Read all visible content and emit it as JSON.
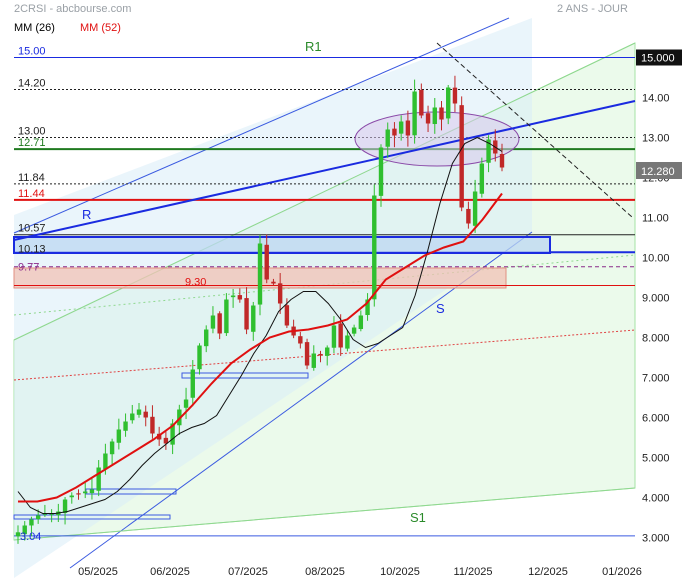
{
  "header": {
    "title": "2CRSI - abcbourse.com",
    "period": "2 ANS - JOUR"
  },
  "legend": [
    {
      "label": "MM (26)",
      "color": "#000000"
    },
    {
      "label": "MM (52)",
      "color": "#e01010"
    }
  ],
  "chart_data": {
    "type": "line",
    "title": "2CRSI",
    "x_ticks": [
      "05/2025",
      "06/2025",
      "07/2025",
      "08/2025",
      "10/2025",
      "11/2025",
      "12/2025",
      "01/2026"
    ],
    "y_ticks": [
      "15.000",
      "14.00",
      "13.00",
      "12.00",
      "11.00",
      "10.00",
      "9.000",
      "8.000",
      "7.000",
      "6.000",
      "5.000",
      "4.000",
      "3.000"
    ],
    "ylim": [
      3.0,
      15.0
    ],
    "last_price": {
      "value": 12.28,
      "label": "12.280"
    },
    "price_series": {
      "name": "2CRSI",
      "start_date": "2025-03-28",
      "end_date": "2025-11-28",
      "close": [
        3.13,
        3.3,
        3.45,
        3.55,
        3.6,
        3.6,
        3.65,
        3.95,
        4.05,
        4.1,
        4.15,
        4.2,
        4.75,
        5.1,
        5.4,
        5.7,
        5.9,
        6.1,
        6.2,
        6.0,
        5.6,
        5.45,
        5.35,
        5.85,
        6.2,
        6.45,
        7.2,
        7.8,
        8.2,
        8.55,
        8.1,
        8.95,
        9.05,
        8.95,
        8.2,
        8.8,
        10.35,
        9.45,
        9.35,
        8.85,
        8.3,
        8.05,
        7.85,
        7.3,
        7.6,
        7.55,
        7.75,
        8.3,
        7.75,
        8.05,
        8.25,
        8.55,
        8.95,
        11.55,
        12.75,
        13.2,
        13.05,
        13.4,
        13.05,
        14.15,
        13.55,
        13.35,
        13.75,
        13.45,
        14.25,
        13.85,
        11.25,
        10.85,
        11.65,
        12.35,
        12.95,
        12.6,
        12.25
      ]
    },
    "series": [
      {
        "name": "MM (26)",
        "color": "#000000",
        "values": [
          4.15,
          3.75,
          3.6,
          3.6,
          3.65,
          3.75,
          3.85,
          3.95,
          4.15,
          4.45,
          4.8,
          5.1,
          5.35,
          5.6,
          5.75,
          5.85,
          6.05,
          6.55,
          7.05,
          7.6,
          8.05,
          8.65,
          8.95,
          9.15,
          9.15,
          8.85,
          8.45,
          7.95,
          7.75,
          7.85,
          8.05,
          8.25,
          9.05,
          10.15,
          11.35,
          12.35,
          12.85,
          13.0,
          12.85,
          12.65
        ]
      },
      {
        "name": "MM (52)",
        "color": "#e01010",
        "values": [
          3.9,
          3.9,
          4.0,
          4.25,
          4.55,
          4.85,
          5.15,
          5.45,
          5.8,
          6.3,
          6.85,
          7.35,
          7.7,
          8.0,
          8.15,
          8.2,
          8.3,
          8.45,
          8.85,
          9.45,
          9.75,
          10.05,
          10.25,
          10.4,
          10.95,
          11.6
        ]
      }
    ],
    "levels": [
      {
        "value": 15.0,
        "label": "15.00"
      },
      {
        "value": 14.2,
        "label": "14.20"
      },
      {
        "value": 13.0,
        "label": "13.00"
      },
      {
        "value": 12.71,
        "label": "12.71"
      },
      {
        "value": 11.84,
        "label": "11.84"
      },
      {
        "value": 11.44,
        "label": "11.44"
      },
      {
        "value": 10.57,
        "label": "10.57"
      },
      {
        "value": 10.13,
        "label": "10.13"
      },
      {
        "value": 9.77,
        "label": "9.77"
      },
      {
        "value": 9.3,
        "label": "9.30"
      },
      {
        "value": 3.04,
        "label": "3.04"
      }
    ],
    "annotations": [
      {
        "text": "R1"
      },
      {
        "text": "R"
      },
      {
        "text": "S"
      },
      {
        "text": "S1"
      }
    ],
    "grid": false
  }
}
